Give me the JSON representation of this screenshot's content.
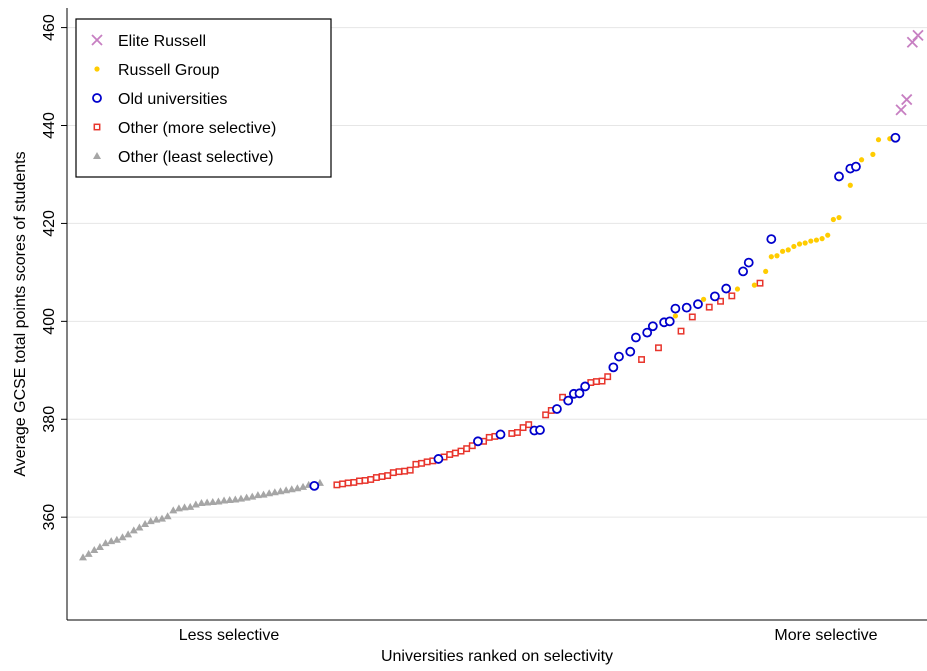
{
  "chart_data": {
    "type": "scatter",
    "xlabel": "Universities ranked on selectivity",
    "ylabel": "Average GCSE total points scores of students",
    "x_tick_labels": [
      "Less selective",
      "More selective"
    ],
    "y_ticks": [
      360,
      380,
      400,
      420,
      440,
      460
    ],
    "ylim": [
      339,
      464
    ],
    "xlim": [
      0,
      150
    ],
    "grid": "horizontal",
    "legend_position": "top-left",
    "colors": {
      "elite": "#c77fc2",
      "russell": "#ffcc00",
      "old": "#0000cc",
      "other_more": "#e8352c",
      "other_least": "#a6a6a6"
    },
    "series": [
      {
        "name": "Elite Russell",
        "marker": "cross",
        "x": [
          146,
          147,
          148,
          149
        ],
        "y": [
          443.2,
          445.3,
          457.0,
          458.4
        ]
      },
      {
        "name": "Russell Group",
        "marker": "dot",
        "x": [
          106,
          108,
          111,
          117,
          120,
          122,
          123,
          124,
          125,
          126,
          127,
          128,
          129,
          130,
          131,
          132,
          133,
          134,
          135,
          137,
          138,
          139,
          141,
          142,
          144
        ],
        "y": [
          401.1,
          402.7,
          404.5,
          406.6,
          407.4,
          410.2,
          413.2,
          413.4,
          414.3,
          414.6,
          415.3,
          415.8,
          416.0,
          416.4,
          416.6,
          416.9,
          417.6,
          420.8,
          421.2,
          427.8,
          432.1,
          433.0,
          434.1,
          437.1,
          437.3
        ]
      },
      {
        "name": "Old universities",
        "marker": "circle",
        "x": [
          42,
          64,
          71,
          75,
          81,
          82,
          85,
          87,
          88,
          89,
          90,
          95,
          96,
          98,
          99,
          101,
          102,
          104,
          105,
          106,
          108,
          110,
          113,
          115,
          118,
          119,
          123,
          135,
          137,
          138,
          145
        ],
        "y": [
          366.4,
          371.9,
          375.5,
          376.9,
          377.7,
          377.8,
          382.1,
          383.8,
          385.2,
          385.3,
          386.7,
          390.6,
          392.8,
          393.8,
          396.7,
          397.7,
          399.0,
          399.8,
          400.0,
          402.6,
          402.8,
          403.5,
          405.1,
          406.7,
          410.2,
          412.0,
          416.8,
          429.6,
          431.2,
          431.6,
          437.5
        ]
      },
      {
        "name": "Other (more selective)",
        "marker": "square",
        "x": [
          46,
          47,
          48,
          49,
          50,
          51,
          52,
          53,
          54,
          55,
          56,
          57,
          58,
          59,
          60,
          61,
          62,
          63,
          65,
          66,
          67,
          68,
          69,
          70,
          72,
          73,
          74,
          77,
          78,
          79,
          80,
          83,
          84,
          86,
          91,
          92,
          93,
          94,
          100,
          103,
          107,
          109,
          112,
          114,
          116,
          121
        ],
        "y": [
          366.6,
          366.8,
          367.0,
          367.1,
          367.4,
          367.5,
          367.7,
          368.1,
          368.3,
          368.5,
          369.1,
          369.3,
          369.4,
          369.6,
          370.8,
          371.0,
          371.3,
          371.5,
          372.3,
          372.8,
          373.1,
          373.5,
          374.0,
          374.6,
          375.5,
          376.3,
          376.5,
          377.1,
          377.3,
          378.3,
          378.9,
          380.9,
          381.8,
          384.5,
          387.5,
          387.7,
          387.8,
          388.7,
          392.2,
          394.6,
          398.0,
          400.9,
          402.9,
          404.1,
          405.2,
          407.8
        ]
      },
      {
        "name": "Other (least selective)",
        "marker": "triangle",
        "x": [
          1,
          2,
          3,
          4,
          5,
          6,
          7,
          8,
          9,
          10,
          11,
          12,
          13,
          14,
          15,
          16,
          17,
          18,
          19,
          20,
          21,
          22,
          23,
          24,
          25,
          26,
          27,
          28,
          29,
          30,
          31,
          32,
          33,
          34,
          35,
          36,
          37,
          38,
          39,
          40,
          41,
          43
        ],
        "y": [
          351.8,
          352.5,
          353.3,
          353.9,
          354.7,
          355.1,
          355.4,
          355.9,
          356.5,
          357.3,
          357.9,
          358.6,
          359.2,
          359.5,
          359.7,
          360.2,
          361.4,
          361.8,
          362.0,
          362.1,
          362.6,
          362.9,
          363.0,
          363.1,
          363.2,
          363.4,
          363.5,
          363.6,
          363.8,
          364.0,
          364.2,
          364.5,
          364.6,
          364.9,
          365.1,
          365.3,
          365.5,
          365.7,
          365.9,
          366.2,
          366.6,
          367.0
        ]
      }
    ]
  }
}
